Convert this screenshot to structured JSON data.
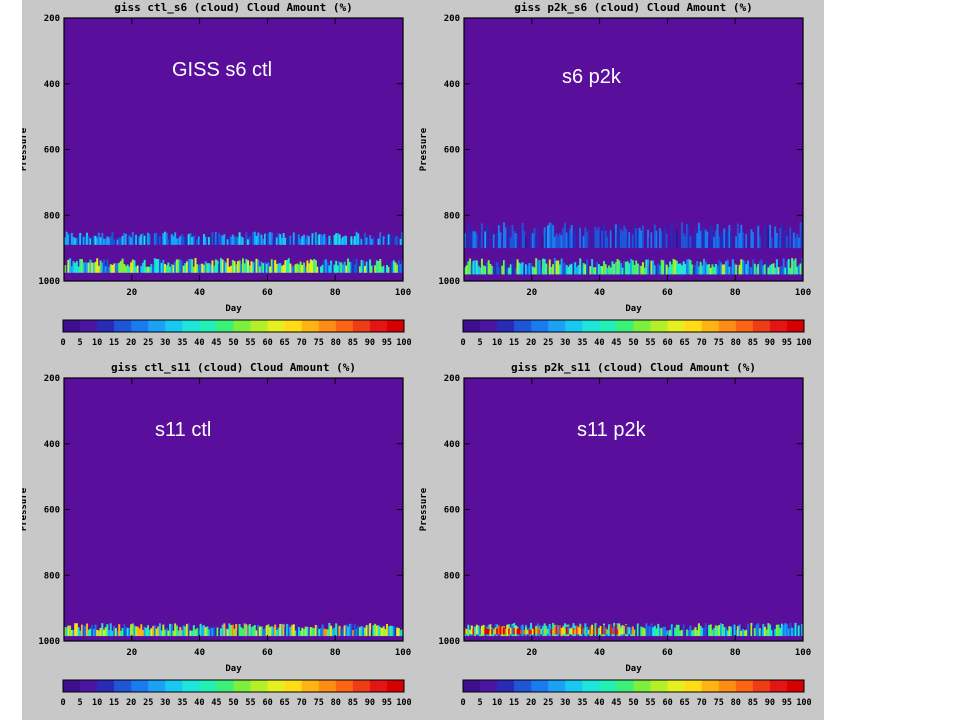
{
  "chart_data": [
    {
      "type": "heatmap",
      "title": "giss ctl_s6 (cloud) Cloud Amount (%)",
      "overlay_label": "GISS s6 ctl",
      "xlabel": "Day",
      "ylabel": "Pressure",
      "xlim": [
        0,
        100
      ],
      "ylim": [
        200,
        1000
      ],
      "y_inverted": true,
      "x_ticks": [
        "20",
        "40",
        "60",
        "80",
        "100"
      ],
      "y_ticks": [
        "200",
        "400",
        "600",
        "800",
        "1000"
      ],
      "cloud_layers": [
        {
          "p_top": 850,
          "p_bottom": 890,
          "mean_amount": 22
        },
        {
          "p_top": 930,
          "p_bottom": 975,
          "mean_amount": 40
        }
      ]
    },
    {
      "type": "heatmap",
      "title": "giss p2k_s6 (cloud) Cloud Amount (%)",
      "overlay_label": "s6 p2k",
      "xlabel": "Day",
      "ylabel": "Pressure",
      "xlim": [
        0,
        100
      ],
      "ylim": [
        200,
        1000
      ],
      "y_inverted": true,
      "x_ticks": [
        "20",
        "40",
        "60",
        "80",
        "100"
      ],
      "y_ticks": [
        "200",
        "400",
        "600",
        "800",
        "1000"
      ],
      "cloud_layers": [
        {
          "p_top": 820,
          "p_bottom": 900,
          "mean_amount": 15
        },
        {
          "p_top": 930,
          "p_bottom": 980,
          "mean_amount": 35
        }
      ]
    },
    {
      "type": "heatmap",
      "title": "giss ctl_s11 (cloud) Cloud Amount (%)",
      "overlay_label": "s11 ctl",
      "xlabel": "Day",
      "ylabel": "Pressure",
      "xlim": [
        0,
        100
      ],
      "ylim": [
        200,
        1000
      ],
      "y_inverted": true,
      "x_ticks": [
        "20",
        "40",
        "60",
        "80",
        "100"
      ],
      "y_ticks": [
        "200",
        "400",
        "600",
        "800",
        "1000"
      ],
      "cloud_layers": [
        {
          "p_top": 945,
          "p_bottom": 985,
          "mean_amount": 45
        }
      ]
    },
    {
      "type": "heatmap",
      "title": "giss p2k_s11 (cloud) Cloud Amount (%)",
      "overlay_label": "s11 p2k",
      "xlabel": "Day",
      "ylabel": "Pressure",
      "xlim": [
        0,
        100
      ],
      "ylim": [
        200,
        1000
      ],
      "y_inverted": true,
      "x_ticks": [
        "20",
        "40",
        "60",
        "80",
        "100"
      ],
      "y_ticks": [
        "200",
        "400",
        "600",
        "800",
        "1000"
      ],
      "cloud_layers": [
        {
          "p_top": 945,
          "p_bottom": 985,
          "mean_amount": 35
        },
        {
          "p_top": 950,
          "p_bottom": 980,
          "x_start": 0,
          "x_end": 50,
          "mean_amount": 60
        }
      ]
    }
  ],
  "colorbar": {
    "ticks": [
      "0",
      "5",
      "10",
      "15",
      "20",
      "25",
      "30",
      "35",
      "40",
      "45",
      "50",
      "55",
      "60",
      "65",
      "70",
      "75",
      "80",
      "85",
      "90",
      "95",
      "100"
    ],
    "colors": [
      "#3d0f8f",
      "#4b15a3",
      "#2a2ab8",
      "#1f55d8",
      "#1a7af0",
      "#1aa2f5",
      "#18c8f0",
      "#1ee6dc",
      "#22f0b4",
      "#3cf078",
      "#7cf03c",
      "#b4f028",
      "#e6f01e",
      "#ffdc14",
      "#ffb414",
      "#ff8c14",
      "#ff6414",
      "#f03c14",
      "#e61414",
      "#d70000"
    ]
  },
  "colors": {
    "background": "#5a0f9c",
    "figure_bg": "#c8c8c8",
    "overlay_text": "#ffffff"
  }
}
